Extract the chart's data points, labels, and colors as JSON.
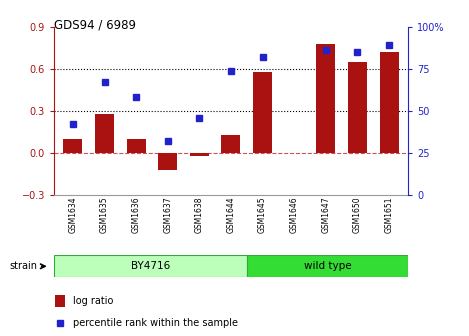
{
  "title": "GDS94 / 6989",
  "samples": [
    "GSM1634",
    "GSM1635",
    "GSM1636",
    "GSM1637",
    "GSM1638",
    "GSM1644",
    "GSM1645",
    "GSM1646",
    "GSM1647",
    "GSM1650",
    "GSM1651"
  ],
  "log_ratio": [
    0.1,
    0.28,
    0.1,
    -0.12,
    -0.02,
    0.13,
    0.58,
    0.0,
    0.78,
    0.65,
    0.72
  ],
  "percentile": [
    42,
    67,
    58,
    32,
    46,
    74,
    82,
    null,
    86,
    85,
    89
  ],
  "bar_color": "#aa1111",
  "dot_color": "#2222cc",
  "ylim_left": [
    -0.3,
    0.9
  ],
  "ylim_right": [
    0,
    100
  ],
  "yticks_left": [
    -0.3,
    0.0,
    0.3,
    0.6,
    0.9
  ],
  "yticks_right": [
    0,
    25,
    50,
    75,
    100
  ],
  "ytick_labels_right": [
    "0",
    "25",
    "50",
    "75",
    "100%"
  ],
  "hlines": [
    0.3,
    0.6
  ],
  "zero_line": 0.0,
  "group1_label": "BY4716",
  "group2_label": "wild type",
  "group1_count": 6,
  "group2_count": 5,
  "strain_label": "strain",
  "legend1": "log ratio",
  "legend2": "percentile rank within the sample",
  "group1_color": "#bbffbb",
  "group2_color": "#33dd33",
  "bg_color": "#ffffff",
  "plot_bg_color": "#ffffff"
}
